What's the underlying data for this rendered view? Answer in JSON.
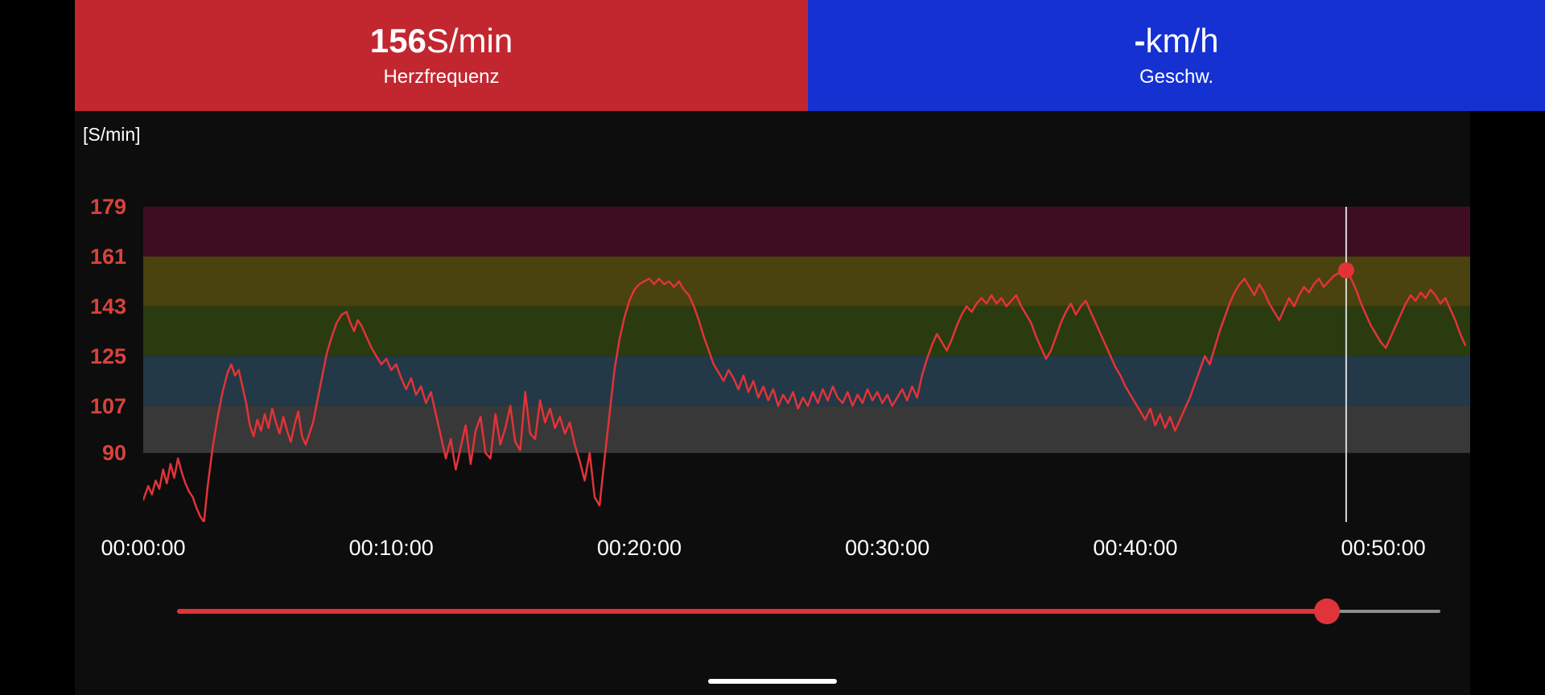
{
  "header": {
    "heart_rate": {
      "value": "156",
      "unit": "S/min",
      "label": "Herzfrequenz",
      "bg_color": "#c22730",
      "text_color": "#ffffff"
    },
    "speed": {
      "value": "-",
      "unit": "km/h",
      "label": "Geschw.",
      "bg_color": "#1531d1",
      "text_color": "#ffffff"
    }
  },
  "chart_data": {
    "type": "line",
    "title": "",
    "xlabel": "",
    "ylabel": "[S/min]",
    "ylim": [
      65,
      179
    ],
    "xlim_minutes": [
      0,
      53.5
    ],
    "y_ticks": [
      179,
      161,
      143,
      125,
      107,
      90
    ],
    "x_ticks": [
      {
        "minutes": 0,
        "label": "00:00:00"
      },
      {
        "minutes": 10,
        "label": "00:10:00"
      },
      {
        "minutes": 20,
        "label": "00:20:00"
      },
      {
        "minutes": 30,
        "label": "00:30:00"
      },
      {
        "minutes": 40,
        "label": "00:40:00"
      },
      {
        "minutes": 50,
        "label": "00:50:00"
      }
    ],
    "axis_color": "#d9423b",
    "grid": false,
    "legend": "none",
    "zones": [
      {
        "from": 161,
        "to": 179,
        "color": "#3e0e20"
      },
      {
        "from": 143,
        "to": 161,
        "color": "#4a420f"
      },
      {
        "from": 125,
        "to": 143,
        "color": "#2a3b10"
      },
      {
        "from": 107,
        "to": 125,
        "color": "#233947"
      },
      {
        "from": 90,
        "to": 107,
        "color": "#383838"
      }
    ],
    "series": [
      {
        "name": "Herzfrequenz",
        "color": "#e23338",
        "points": [
          [
            0,
            73
          ],
          [
            0.2,
            78
          ],
          [
            0.35,
            75
          ],
          [
            0.5,
            80
          ],
          [
            0.65,
            77
          ],
          [
            0.8,
            84
          ],
          [
            0.95,
            79
          ],
          [
            1.1,
            86
          ],
          [
            1.25,
            81
          ],
          [
            1.4,
            88
          ],
          [
            1.55,
            83
          ],
          [
            1.7,
            79
          ],
          [
            1.85,
            76
          ],
          [
            2.0,
            74
          ],
          [
            2.15,
            70
          ],
          [
            2.3,
            67
          ],
          [
            2.45,
            65
          ],
          [
            2.6,
            78
          ],
          [
            2.8,
            92
          ],
          [
            3.0,
            103
          ],
          [
            3.2,
            112
          ],
          [
            3.4,
            119
          ],
          [
            3.55,
            122
          ],
          [
            3.7,
            118
          ],
          [
            3.85,
            120
          ],
          [
            4.0,
            114
          ],
          [
            4.15,
            108
          ],
          [
            4.3,
            100
          ],
          [
            4.45,
            96
          ],
          [
            4.6,
            102
          ],
          [
            4.75,
            98
          ],
          [
            4.9,
            104
          ],
          [
            5.05,
            99
          ],
          [
            5.2,
            106
          ],
          [
            5.35,
            101
          ],
          [
            5.5,
            97
          ],
          [
            5.65,
            103
          ],
          [
            5.8,
            98
          ],
          [
            5.95,
            94
          ],
          [
            6.1,
            100
          ],
          [
            6.25,
            105
          ],
          [
            6.4,
            96
          ],
          [
            6.55,
            93
          ],
          [
            6.7,
            97
          ],
          [
            6.85,
            101
          ],
          [
            7.0,
            108
          ],
          [
            7.2,
            117
          ],
          [
            7.4,
            126
          ],
          [
            7.6,
            132
          ],
          [
            7.8,
            137
          ],
          [
            8.0,
            140
          ],
          [
            8.2,
            141
          ],
          [
            8.35,
            137
          ],
          [
            8.5,
            134
          ],
          [
            8.65,
            138
          ],
          [
            8.8,
            136
          ],
          [
            9.0,
            132
          ],
          [
            9.2,
            128
          ],
          [
            9.4,
            125
          ],
          [
            9.6,
            122
          ],
          [
            9.8,
            124
          ],
          [
            10.0,
            120
          ],
          [
            10.2,
            122
          ],
          [
            10.4,
            117
          ],
          [
            10.6,
            113
          ],
          [
            10.8,
            117
          ],
          [
            11.0,
            111
          ],
          [
            11.2,
            114
          ],
          [
            11.4,
            108
          ],
          [
            11.6,
            112
          ],
          [
            11.8,
            104
          ],
          [
            12.0,
            96
          ],
          [
            12.2,
            88
          ],
          [
            12.4,
            95
          ],
          [
            12.6,
            84
          ],
          [
            12.8,
            92
          ],
          [
            13.0,
            100
          ],
          [
            13.2,
            86
          ],
          [
            13.4,
            98
          ],
          [
            13.6,
            103
          ],
          [
            13.8,
            90
          ],
          [
            14.0,
            88
          ],
          [
            14.2,
            104
          ],
          [
            14.4,
            93
          ],
          [
            14.6,
            99
          ],
          [
            14.8,
            107
          ],
          [
            15.0,
            94
          ],
          [
            15.2,
            91
          ],
          [
            15.4,
            112
          ],
          [
            15.6,
            97
          ],
          [
            15.8,
            95
          ],
          [
            16.0,
            109
          ],
          [
            16.2,
            101
          ],
          [
            16.4,
            106
          ],
          [
            16.6,
            99
          ],
          [
            16.8,
            103
          ],
          [
            17.0,
            97
          ],
          [
            17.2,
            101
          ],
          [
            17.4,
            93
          ],
          [
            17.6,
            87
          ],
          [
            17.8,
            80
          ],
          [
            18.0,
            90
          ],
          [
            18.2,
            74
          ],
          [
            18.4,
            71
          ],
          [
            18.6,
            88
          ],
          [
            18.8,
            104
          ],
          [
            19.0,
            120
          ],
          [
            19.2,
            131
          ],
          [
            19.4,
            139
          ],
          [
            19.6,
            145
          ],
          [
            19.8,
            149
          ],
          [
            20.0,
            151
          ],
          [
            20.2,
            152
          ],
          [
            20.4,
            153
          ],
          [
            20.6,
            151
          ],
          [
            20.8,
            153
          ],
          [
            21.0,
            151
          ],
          [
            21.2,
            152
          ],
          [
            21.4,
            150
          ],
          [
            21.6,
            152
          ],
          [
            21.8,
            149
          ],
          [
            22.0,
            147
          ],
          [
            22.2,
            143
          ],
          [
            22.4,
            138
          ],
          [
            22.6,
            132
          ],
          [
            22.8,
            127
          ],
          [
            23.0,
            122
          ],
          [
            23.2,
            119
          ],
          [
            23.4,
            116
          ],
          [
            23.6,
            120
          ],
          [
            23.8,
            117
          ],
          [
            24.0,
            113
          ],
          [
            24.2,
            118
          ],
          [
            24.4,
            112
          ],
          [
            24.6,
            116
          ],
          [
            24.8,
            110
          ],
          [
            25.0,
            114
          ],
          [
            25.2,
            109
          ],
          [
            25.4,
            113
          ],
          [
            25.6,
            107
          ],
          [
            25.8,
            111
          ],
          [
            26.0,
            108
          ],
          [
            26.2,
            112
          ],
          [
            26.4,
            106
          ],
          [
            26.6,
            110
          ],
          [
            26.8,
            107
          ],
          [
            27.0,
            112
          ],
          [
            27.2,
            108
          ],
          [
            27.4,
            113
          ],
          [
            27.6,
            109
          ],
          [
            27.8,
            114
          ],
          [
            28.0,
            110
          ],
          [
            28.2,
            108
          ],
          [
            28.4,
            112
          ],
          [
            28.6,
            107
          ],
          [
            28.8,
            111
          ],
          [
            29.0,
            108
          ],
          [
            29.2,
            113
          ],
          [
            29.4,
            109
          ],
          [
            29.6,
            112
          ],
          [
            29.8,
            108
          ],
          [
            30.0,
            111
          ],
          [
            30.2,
            107
          ],
          [
            30.4,
            110
          ],
          [
            30.6,
            113
          ],
          [
            30.8,
            109
          ],
          [
            31.0,
            114
          ],
          [
            31.2,
            110
          ],
          [
            31.4,
            118
          ],
          [
            31.6,
            124
          ],
          [
            31.8,
            129
          ],
          [
            32.0,
            133
          ],
          [
            32.2,
            130
          ],
          [
            32.4,
            127
          ],
          [
            32.6,
            131
          ],
          [
            32.8,
            136
          ],
          [
            33.0,
            140
          ],
          [
            33.2,
            143
          ],
          [
            33.4,
            141
          ],
          [
            33.6,
            144
          ],
          [
            33.8,
            146
          ],
          [
            34.0,
            144
          ],
          [
            34.2,
            147
          ],
          [
            34.4,
            144
          ],
          [
            34.6,
            146
          ],
          [
            34.8,
            143
          ],
          [
            35.0,
            145
          ],
          [
            35.2,
            147
          ],
          [
            35.4,
            143
          ],
          [
            35.6,
            140
          ],
          [
            35.8,
            137
          ],
          [
            36.0,
            132
          ],
          [
            36.2,
            128
          ],
          [
            36.4,
            124
          ],
          [
            36.6,
            127
          ],
          [
            36.8,
            132
          ],
          [
            37.0,
            137
          ],
          [
            37.2,
            141
          ],
          [
            37.4,
            144
          ],
          [
            37.6,
            140
          ],
          [
            37.8,
            143
          ],
          [
            38.0,
            145
          ],
          [
            38.2,
            141
          ],
          [
            38.4,
            137
          ],
          [
            38.6,
            133
          ],
          [
            38.8,
            129
          ],
          [
            39.0,
            125
          ],
          [
            39.2,
            121
          ],
          [
            39.4,
            118
          ],
          [
            39.6,
            114
          ],
          [
            39.8,
            111
          ],
          [
            40.0,
            108
          ],
          [
            40.2,
            105
          ],
          [
            40.4,
            102
          ],
          [
            40.6,
            106
          ],
          [
            40.8,
            100
          ],
          [
            41.0,
            104
          ],
          [
            41.2,
            99
          ],
          [
            41.4,
            103
          ],
          [
            41.6,
            98
          ],
          [
            41.8,
            102
          ],
          [
            42.0,
            106
          ],
          [
            42.2,
            110
          ],
          [
            42.4,
            115
          ],
          [
            42.6,
            120
          ],
          [
            42.8,
            125
          ],
          [
            43.0,
            122
          ],
          [
            43.2,
            128
          ],
          [
            43.4,
            134
          ],
          [
            43.6,
            139
          ],
          [
            43.8,
            144
          ],
          [
            44.0,
            148
          ],
          [
            44.2,
            151
          ],
          [
            44.4,
            153
          ],
          [
            44.6,
            150
          ],
          [
            44.8,
            147
          ],
          [
            45.0,
            151
          ],
          [
            45.2,
            148
          ],
          [
            45.4,
            144
          ],
          [
            45.6,
            141
          ],
          [
            45.8,
            138
          ],
          [
            46.0,
            142
          ],
          [
            46.2,
            146
          ],
          [
            46.4,
            143
          ],
          [
            46.6,
            147
          ],
          [
            46.8,
            150
          ],
          [
            47.0,
            148
          ],
          [
            47.2,
            151
          ],
          [
            47.4,
            153
          ],
          [
            47.6,
            150
          ],
          [
            47.8,
            152
          ],
          [
            48.0,
            154
          ],
          [
            48.2,
            155
          ],
          [
            48.5,
            156
          ],
          [
            48.7,
            153
          ],
          [
            48.9,
            149
          ],
          [
            49.1,
            144
          ],
          [
            49.3,
            140
          ],
          [
            49.5,
            136
          ],
          [
            49.7,
            133
          ],
          [
            49.9,
            130
          ],
          [
            50.1,
            128
          ],
          [
            50.3,
            132
          ],
          [
            50.5,
            136
          ],
          [
            50.7,
            140
          ],
          [
            50.9,
            144
          ],
          [
            51.1,
            147
          ],
          [
            51.3,
            145
          ],
          [
            51.5,
            148
          ],
          [
            51.7,
            146
          ],
          [
            51.9,
            149
          ],
          [
            52.1,
            147
          ],
          [
            52.3,
            144
          ],
          [
            52.5,
            146
          ],
          [
            52.7,
            142
          ],
          [
            52.9,
            138
          ],
          [
            53.1,
            133
          ],
          [
            53.3,
            129
          ]
        ]
      }
    ],
    "cursor": {
      "time_minutes": 48.5,
      "value": 156,
      "line_color": "#d9d9d9",
      "dot_color": "#e23338"
    }
  },
  "slider": {
    "value_percent": 91,
    "fill_color": "#e0333a",
    "rest_color": "#8d8d8d",
    "thumb_color": "#e0333a"
  }
}
